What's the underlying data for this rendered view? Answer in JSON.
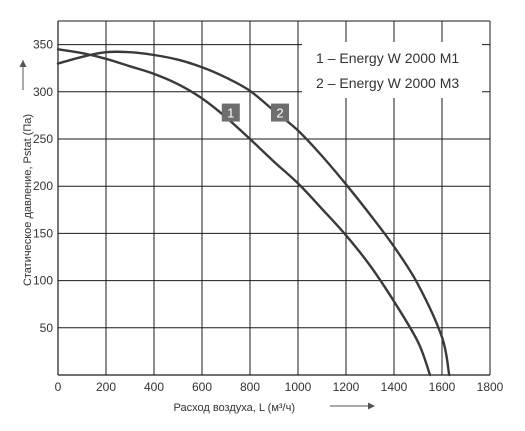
{
  "chart_data": {
    "type": "line",
    "xlabel": "Расход воздуха, L (м³/ч)",
    "ylabel": "Статическое давление, Pstat (Па)",
    "xlim": [
      0,
      1800
    ],
    "ylim": [
      0,
      375
    ],
    "x_ticks": [
      0,
      200,
      400,
      600,
      800,
      1000,
      1200,
      1400,
      1600,
      1800
    ],
    "y_ticks": [
      50,
      100,
      150,
      200,
      250,
      300,
      350
    ],
    "x_tick_labels": [
      "0",
      "200",
      "400",
      "600",
      "800",
      "1000",
      "1200",
      "1400",
      "1600",
      "1800"
    ],
    "y_tick_labels": [
      "50",
      "100",
      "150",
      "200",
      "250",
      "300",
      "350"
    ],
    "grid": true,
    "legend_position": "top-right",
    "legend": [
      "1 – Energy W 2000 M1",
      "2 – Energy W 2000 M3"
    ],
    "series": [
      {
        "name": "1",
        "color": "#3a3a3a",
        "x": [
          0,
          100,
          200,
          300,
          400,
          500,
          600,
          700,
          800,
          900,
          1000,
          1100,
          1200,
          1300,
          1400,
          1500,
          1550
        ],
        "y": [
          345,
          341,
          335,
          327,
          319,
          308,
          293,
          273,
          250,
          226,
          203,
          176,
          148,
          116,
          78,
          35,
          0
        ]
      },
      {
        "name": "2",
        "color": "#3a3a3a",
        "x": [
          0,
          100,
          200,
          300,
          400,
          500,
          600,
          700,
          800,
          900,
          1000,
          1100,
          1200,
          1300,
          1400,
          1500,
          1600,
          1630
        ],
        "y": [
          330,
          337,
          342,
          342,
          339,
          334,
          326,
          315,
          301,
          280,
          259,
          232,
          202,
          170,
          136,
          96,
          40,
          0
        ]
      }
    ],
    "markers": [
      {
        "label": "1",
        "series": "1",
        "x": 720,
        "y": 278
      },
      {
        "label": "2",
        "series": "2",
        "x": 925,
        "y": 278
      }
    ]
  }
}
